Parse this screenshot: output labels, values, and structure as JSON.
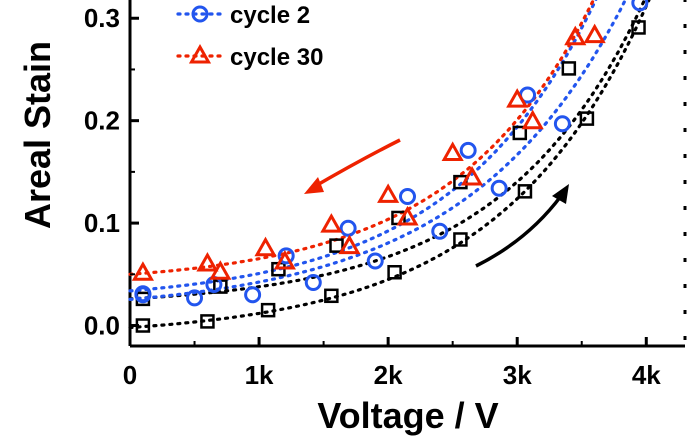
{
  "chart_data": {
    "type": "scatter",
    "xlabel": "Voltage / V",
    "ylabel": "Areal Stain",
    "xlim": [
      0,
      4300
    ],
    "ylim": [
      -0.02,
      0.31
    ],
    "xticks": [
      0,
      1000,
      2000,
      3000,
      4000
    ],
    "xtick_labels": [
      "0",
      "1k",
      "2k",
      "3k",
      "4k"
    ],
    "yticks": [
      0.0,
      0.1,
      0.2,
      0.3
    ],
    "ytick_labels": [
      "0.0",
      "0.1",
      "0.2",
      "0.3"
    ],
    "legend_position": "top-left",
    "series": [
      {
        "name": "",
        "marker": "square",
        "color": "#000000",
        "points": [
          [
            100,
            0.0
          ],
          [
            600,
            0.004
          ],
          [
            1070,
            0.015
          ],
          [
            1560,
            0.029
          ],
          [
            2050,
            0.052
          ],
          [
            2560,
            0.084
          ],
          [
            3060,
            0.131
          ],
          [
            3540,
            0.202
          ],
          [
            3940,
            0.291
          ],
          [
            3400,
            0.251
          ],
          [
            3020,
            0.188
          ],
          [
            2560,
            0.14
          ],
          [
            2080,
            0.105
          ],
          [
            1600,
            0.078
          ],
          [
            1150,
            0.055
          ],
          [
            700,
            0.038
          ],
          [
            100,
            0.026
          ]
        ]
      },
      {
        "name": "cycle 2",
        "marker": "circle",
        "color": "#2255ee",
        "points": [
          [
            100,
            0.031
          ],
          [
            500,
            0.027
          ],
          [
            950,
            0.03
          ],
          [
            1420,
            0.042
          ],
          [
            1900,
            0.063
          ],
          [
            2400,
            0.092
          ],
          [
            2860,
            0.134
          ],
          [
            3350,
            0.197
          ],
          [
            3950,
            0.315
          ],
          [
            3080,
            0.225
          ],
          [
            2620,
            0.171
          ],
          [
            2150,
            0.126
          ],
          [
            1690,
            0.095
          ],
          [
            1210,
            0.068
          ],
          [
            650,
            0.04
          ],
          [
            100,
            0.03
          ]
        ]
      },
      {
        "name": "cycle 30",
        "marker": "triangle",
        "color": "#ee2200",
        "points": [
          [
            100,
            0.051
          ],
          [
            600,
            0.06
          ],
          [
            700,
            0.052
          ],
          [
            1050,
            0.075
          ],
          [
            1560,
            0.098
          ],
          [
            2000,
            0.127
          ],
          [
            2500,
            0.168
          ],
          [
            3000,
            0.22
          ],
          [
            3450,
            0.281
          ],
          [
            3600,
            0.283
          ],
          [
            3120,
            0.199
          ],
          [
            2650,
            0.144
          ],
          [
            2150,
            0.105
          ],
          [
            1700,
            0.077
          ],
          [
            1200,
            0.062
          ]
        ]
      }
    ],
    "legend": [
      {
        "label": "cycle 2",
        "marker": "circle",
        "color": "#2255ee"
      },
      {
        "label": "cycle 30",
        "marker": "triangle",
        "color": "#ee2200"
      }
    ],
    "annotations": [
      {
        "type": "arrow",
        "color": "#ee2200",
        "direction": "left"
      },
      {
        "type": "arrow",
        "color": "#000000",
        "direction": "up-right"
      }
    ]
  }
}
